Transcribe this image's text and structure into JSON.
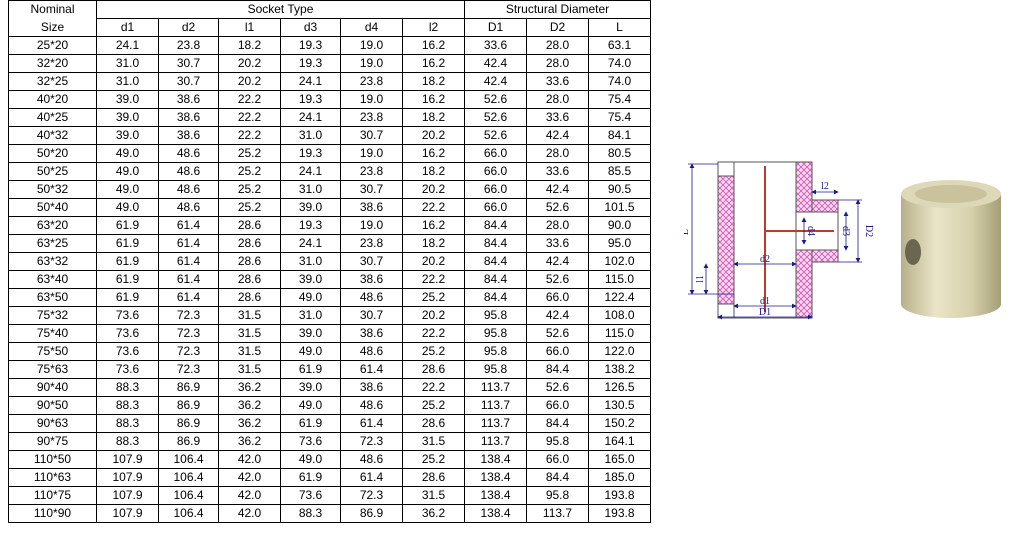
{
  "table": {
    "group_headers": [
      "Nominal",
      "Socket Type",
      "Structural Diameter"
    ],
    "headers": [
      "Size",
      "d1",
      "d2",
      "l1",
      "d3",
      "d4",
      "l2",
      "D1",
      "D2",
      "L"
    ],
    "rows": [
      [
        "25*20",
        "24.1",
        "23.8",
        "18.2",
        "19.3",
        "19.0",
        "16.2",
        "33.6",
        "28.0",
        "63.1"
      ],
      [
        "32*20",
        "31.0",
        "30.7",
        "20.2",
        "19.3",
        "19.0",
        "16.2",
        "42.4",
        "28.0",
        "74.0"
      ],
      [
        "32*25",
        "31.0",
        "30.7",
        "20.2",
        "24.1",
        "23.8",
        "18.2",
        "42.4",
        "33.6",
        "74.0"
      ],
      [
        "40*20",
        "39.0",
        "38.6",
        "22.2",
        "19.3",
        "19.0",
        "16.2",
        "52.6",
        "28.0",
        "75.4"
      ],
      [
        "40*25",
        "39.0",
        "38.6",
        "22.2",
        "24.1",
        "23.8",
        "18.2",
        "52.6",
        "33.6",
        "75.4"
      ],
      [
        "40*32",
        "39.0",
        "38.6",
        "22.2",
        "31.0",
        "30.7",
        "20.2",
        "52.6",
        "42.4",
        "84.1"
      ],
      [
        "50*20",
        "49.0",
        "48.6",
        "25.2",
        "19.3",
        "19.0",
        "16.2",
        "66.0",
        "28.0",
        "80.5"
      ],
      [
        "50*25",
        "49.0",
        "48.6",
        "25.2",
        "24.1",
        "23.8",
        "18.2",
        "66.0",
        "33.6",
        "85.5"
      ],
      [
        "50*32",
        "49.0",
        "48.6",
        "25.2",
        "31.0",
        "30.7",
        "20.2",
        "66.0",
        "42.4",
        "90.5"
      ],
      [
        "50*40",
        "49.0",
        "48.6",
        "25.2",
        "39.0",
        "38.6",
        "22.2",
        "66.0",
        "52.6",
        "101.5"
      ],
      [
        "63*20",
        "61.9",
        "61.4",
        "28.6",
        "19.3",
        "19.0",
        "16.2",
        "84.4",
        "28.0",
        "90.0"
      ],
      [
        "63*25",
        "61.9",
        "61.4",
        "28.6",
        "24.1",
        "23.8",
        "18.2",
        "84.4",
        "33.6",
        "95.0"
      ],
      [
        "63*32",
        "61.9",
        "61.4",
        "28.6",
        "31.0",
        "30.7",
        "20.2",
        "84.4",
        "42.4",
        "102.0"
      ],
      [
        "63*40",
        "61.9",
        "61.4",
        "28.6",
        "39.0",
        "38.6",
        "22.2",
        "84.4",
        "52.6",
        "115.0"
      ],
      [
        "63*50",
        "61.9",
        "61.4",
        "28.6",
        "49.0",
        "48.6",
        "25.2",
        "84.4",
        "66.0",
        "122.4"
      ],
      [
        "75*32",
        "73.6",
        "72.3",
        "31.5",
        "31.0",
        "30.7",
        "20.2",
        "95.8",
        "42.4",
        "108.0"
      ],
      [
        "75*40",
        "73.6",
        "72.3",
        "31.5",
        "39.0",
        "38.6",
        "22.2",
        "95.8",
        "52.6",
        "115.0"
      ],
      [
        "75*50",
        "73.6",
        "72.3",
        "31.5",
        "49.0",
        "48.6",
        "25.2",
        "95.8",
        "66.0",
        "122.0"
      ],
      [
        "75*63",
        "73.6",
        "72.3",
        "31.5",
        "61.9",
        "61.4",
        "28.6",
        "95.8",
        "84.4",
        "138.2"
      ],
      [
        "90*40",
        "88.3",
        "86.9",
        "36.2",
        "39.0",
        "38.6",
        "22.2",
        "113.7",
        "52.6",
        "126.5"
      ],
      [
        "90*50",
        "88.3",
        "86.9",
        "36.2",
        "49.0",
        "48.6",
        "25.2",
        "113.7",
        "66.0",
        "130.5"
      ],
      [
        "90*63",
        "88.3",
        "86.9",
        "36.2",
        "61.9",
        "61.4",
        "28.6",
        "113.7",
        "84.4",
        "150.2"
      ],
      [
        "90*75",
        "88.3",
        "86.9",
        "36.2",
        "73.6",
        "72.3",
        "31.5",
        "113.7",
        "95.8",
        "164.1"
      ],
      [
        "110*50",
        "107.9",
        "106.4",
        "42.0",
        "49.0",
        "48.6",
        "25.2",
        "138.4",
        "66.0",
        "165.0"
      ],
      [
        "110*63",
        "107.9",
        "106.4",
        "42.0",
        "61.9",
        "61.4",
        "28.6",
        "138.4",
        "84.4",
        "185.0"
      ],
      [
        "110*75",
        "107.9",
        "106.4",
        "42.0",
        "73.6",
        "72.3",
        "31.5",
        "138.4",
        "95.8",
        "193.8"
      ],
      [
        "110*90",
        "107.9",
        "106.4",
        "42.0",
        "88.3",
        "86.9",
        "36.2",
        "138.4",
        "113.7",
        "193.8"
      ]
    ]
  },
  "diagram": {
    "labels": {
      "L": "L",
      "l1": "l1",
      "l2": "l2",
      "d1": "d1",
      "D1": "D1",
      "d2": "d2",
      "d3": "d3",
      "D2": "D2",
      "d4": "d4"
    }
  }
}
